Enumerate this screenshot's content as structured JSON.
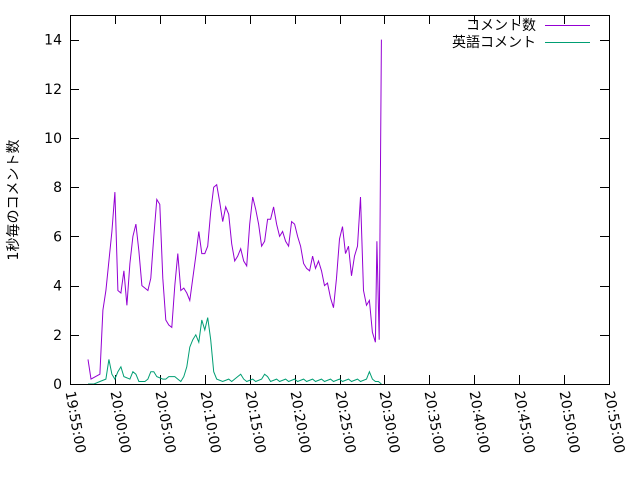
{
  "chart_data": {
    "type": "line",
    "title": "",
    "xlabel": "",
    "ylabel": "1秒毎のコメント数",
    "x_range": [
      "19:55:00",
      "20:55:00"
    ],
    "ylim": [
      0,
      15
    ],
    "x_ticks": [
      "19:55:00",
      "20:00:00",
      "20:05:00",
      "20:10:00",
      "20:15:00",
      "20:20:00",
      "20:25:00",
      "20:30:00",
      "20:35:00",
      "20:40:00",
      "20:45:00",
      "20:50:00",
      "20:55:00"
    ],
    "y_ticks": [
      0,
      2,
      4,
      6,
      8,
      10,
      12,
      14
    ],
    "grid": false,
    "legend_position": "top-right",
    "series": [
      {
        "name": "コメント数",
        "color": "#9400d3",
        "points": [
          [
            "19:57:00",
            1.0
          ],
          [
            "19:57:20",
            0.2
          ],
          [
            "19:58:20",
            0.4
          ],
          [
            "19:58:40",
            3.0
          ],
          [
            "19:59:00",
            3.8
          ],
          [
            "19:59:40",
            6.2
          ],
          [
            "20:00:00",
            7.8
          ],
          [
            "20:00:20",
            3.8
          ],
          [
            "20:00:40",
            3.7
          ],
          [
            "20:01:00",
            4.6
          ],
          [
            "20:01:20",
            3.2
          ],
          [
            "20:01:40",
            4.9
          ],
          [
            "20:02:00",
            6.0
          ],
          [
            "20:02:20",
            6.5
          ],
          [
            "20:02:40",
            5.4
          ],
          [
            "20:03:00",
            4.0
          ],
          [
            "20:03:40",
            3.8
          ],
          [
            "20:04:00",
            4.3
          ],
          [
            "20:04:20",
            6.0
          ],
          [
            "20:04:40",
            7.5
          ],
          [
            "20:05:00",
            7.3
          ],
          [
            "20:05:20",
            4.3
          ],
          [
            "20:05:40",
            2.6
          ],
          [
            "20:06:00",
            2.4
          ],
          [
            "20:06:20",
            2.3
          ],
          [
            "20:06:40",
            4.0
          ],
          [
            "20:07:00",
            5.3
          ],
          [
            "20:07:20",
            3.8
          ],
          [
            "20:07:40",
            3.9
          ],
          [
            "20:08:00",
            3.7
          ],
          [
            "20:08:20",
            3.4
          ],
          [
            "20:08:40",
            4.3
          ],
          [
            "20:09:00",
            5.2
          ],
          [
            "20:09:20",
            6.2
          ],
          [
            "20:09:40",
            5.3
          ],
          [
            "20:10:00",
            5.3
          ],
          [
            "20:10:20",
            5.6
          ],
          [
            "20:10:40",
            7.0
          ],
          [
            "20:11:00",
            8.0
          ],
          [
            "20:11:20",
            8.1
          ],
          [
            "20:11:40",
            7.4
          ],
          [
            "20:12:00",
            6.6
          ],
          [
            "20:12:20",
            7.2
          ],
          [
            "20:12:40",
            6.9
          ],
          [
            "20:13:00",
            5.7
          ],
          [
            "20:13:20",
            5.0
          ],
          [
            "20:13:40",
            5.2
          ],
          [
            "20:14:00",
            5.5
          ],
          [
            "20:14:20",
            5.0
          ],
          [
            "20:14:40",
            4.8
          ],
          [
            "20:15:00",
            6.5
          ],
          [
            "20:15:20",
            7.6
          ],
          [
            "20:15:40",
            7.1
          ],
          [
            "20:16:00",
            6.5
          ],
          [
            "20:16:20",
            5.6
          ],
          [
            "20:16:40",
            5.8
          ],
          [
            "20:17:00",
            6.7
          ],
          [
            "20:17:20",
            6.7
          ],
          [
            "20:17:40",
            7.2
          ],
          [
            "20:18:00",
            6.5
          ],
          [
            "20:18:20",
            6.0
          ],
          [
            "20:18:40",
            6.2
          ],
          [
            "20:19:00",
            5.8
          ],
          [
            "20:19:20",
            5.6
          ],
          [
            "20:19:40",
            6.6
          ],
          [
            "20:20:00",
            6.5
          ],
          [
            "20:20:20",
            6.0
          ],
          [
            "20:20:40",
            5.6
          ],
          [
            "20:21:00",
            4.9
          ],
          [
            "20:21:20",
            4.7
          ],
          [
            "20:21:40",
            4.6
          ],
          [
            "20:22:00",
            5.2
          ],
          [
            "20:22:20",
            4.7
          ],
          [
            "20:22:40",
            5.0
          ],
          [
            "20:23:00",
            4.6
          ],
          [
            "20:23:20",
            4.0
          ],
          [
            "20:23:40",
            4.1
          ],
          [
            "20:24:00",
            3.5
          ],
          [
            "20:24:20",
            3.1
          ],
          [
            "20:24:40",
            4.3
          ],
          [
            "20:25:00",
            5.9
          ],
          [
            "20:25:20",
            6.4
          ],
          [
            "20:25:40",
            5.3
          ],
          [
            "20:26:00",
            5.6
          ],
          [
            "20:26:20",
            4.4
          ],
          [
            "20:26:40",
            5.2
          ],
          [
            "20:27:00",
            5.6
          ],
          [
            "20:27:20",
            7.6
          ],
          [
            "20:27:40",
            3.8
          ],
          [
            "20:28:00",
            3.2
          ],
          [
            "20:28:20",
            3.4
          ],
          [
            "20:28:40",
            2.1
          ],
          [
            "20:29:00",
            1.7
          ],
          [
            "20:29:10",
            5.8
          ],
          [
            "20:29:25",
            1.8
          ],
          [
            "20:29:40",
            14.0
          ]
        ]
      },
      {
        "name": "英語コメント",
        "color": "#009e73",
        "points": [
          [
            "19:57:00",
            0.0
          ],
          [
            "19:57:40",
            0.0
          ],
          [
            "19:58:20",
            0.1
          ],
          [
            "19:59:00",
            0.2
          ],
          [
            "19:59:20",
            1.0
          ],
          [
            "19:59:40",
            0.4
          ],
          [
            "20:00:00",
            0.2
          ],
          [
            "20:00:20",
            0.5
          ],
          [
            "20:00:40",
            0.7
          ],
          [
            "20:01:00",
            0.3
          ],
          [
            "20:01:40",
            0.2
          ],
          [
            "20:02:00",
            0.5
          ],
          [
            "20:02:20",
            0.4
          ],
          [
            "20:02:40",
            0.1
          ],
          [
            "20:03:20",
            0.1
          ],
          [
            "20:03:40",
            0.2
          ],
          [
            "20:04:00",
            0.5
          ],
          [
            "20:04:20",
            0.5
          ],
          [
            "20:04:40",
            0.3
          ],
          [
            "20:05:20",
            0.2
          ],
          [
            "20:05:40",
            0.2
          ],
          [
            "20:06:00",
            0.3
          ],
          [
            "20:06:40",
            0.3
          ],
          [
            "20:07:00",
            0.2
          ],
          [
            "20:07:20",
            0.1
          ],
          [
            "20:07:40",
            0.3
          ],
          [
            "20:08:00",
            0.7
          ],
          [
            "20:08:20",
            1.5
          ],
          [
            "20:08:40",
            1.8
          ],
          [
            "20:09:00",
            2.0
          ],
          [
            "20:09:20",
            1.7
          ],
          [
            "20:09:40",
            2.6
          ],
          [
            "20:10:00",
            2.2
          ],
          [
            "20:10:20",
            2.7
          ],
          [
            "20:10:40",
            1.8
          ],
          [
            "20:11:00",
            0.5
          ],
          [
            "20:11:20",
            0.2
          ],
          [
            "20:12:00",
            0.1
          ],
          [
            "20:12:40",
            0.2
          ],
          [
            "20:13:00",
            0.1
          ],
          [
            "20:13:40",
            0.3
          ],
          [
            "20:14:00",
            0.4
          ],
          [
            "20:14:20",
            0.2
          ],
          [
            "20:14:40",
            0.1
          ],
          [
            "20:15:20",
            0.2
          ],
          [
            "20:15:40",
            0.1
          ],
          [
            "20:16:20",
            0.2
          ],
          [
            "20:16:40",
            0.4
          ],
          [
            "20:17:00",
            0.3
          ],
          [
            "20:17:20",
            0.1
          ],
          [
            "20:18:00",
            0.2
          ],
          [
            "20:18:20",
            0.1
          ],
          [
            "20:19:00",
            0.2
          ],
          [
            "20:19:20",
            0.1
          ],
          [
            "20:20:00",
            0.2
          ],
          [
            "20:20:20",
            0.1
          ],
          [
            "20:21:00",
            0.2
          ],
          [
            "20:21:20",
            0.1
          ],
          [
            "20:22:00",
            0.2
          ],
          [
            "20:22:20",
            0.1
          ],
          [
            "20:23:00",
            0.2
          ],
          [
            "20:23:20",
            0.1
          ],
          [
            "20:24:00",
            0.2
          ],
          [
            "20:24:20",
            0.1
          ],
          [
            "20:25:00",
            0.2
          ],
          [
            "20:25:20",
            0.1
          ],
          [
            "20:26:00",
            0.2
          ],
          [
            "20:26:20",
            0.1
          ],
          [
            "20:27:00",
            0.2
          ],
          [
            "20:27:20",
            0.1
          ],
          [
            "20:28:00",
            0.2
          ],
          [
            "20:28:20",
            0.5
          ],
          [
            "20:28:40",
            0.2
          ],
          [
            "20:29:00",
            0.1
          ],
          [
            "20:29:20",
            0.1
          ],
          [
            "20:29:40",
            0.0
          ]
        ]
      }
    ]
  }
}
